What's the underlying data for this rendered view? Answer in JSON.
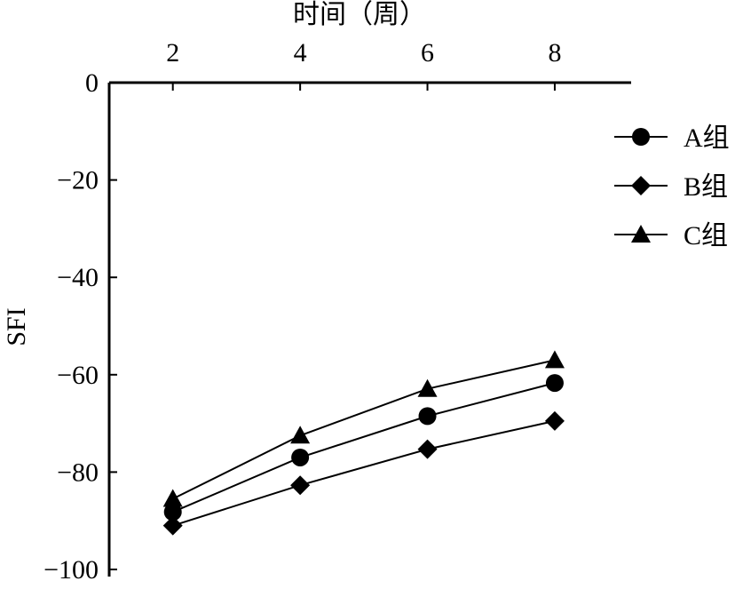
{
  "chart_data": {
    "type": "line",
    "title": "",
    "xlabel": "时间（周）",
    "ylabel": "SFI",
    "x": [
      2,
      4,
      6,
      8
    ],
    "xticks": [
      "2",
      "4",
      "6",
      "8"
    ],
    "xlim": [
      1,
      9.2
    ],
    "ylim": [
      -100,
      0
    ],
    "yticks": [
      0,
      -20,
      -40,
      -60,
      -80,
      -100
    ],
    "ytick_labels": [
      "0",
      "−20",
      "−40",
      "−60",
      "−80",
      "−100"
    ],
    "x_axis_position": "top",
    "grid": false,
    "legend_position": "right",
    "series": [
      {
        "name": "A组",
        "marker": "circle",
        "values": [
          -88.2,
          -77.0,
          -68.5,
          -61.7
        ]
      },
      {
        "name": "B组",
        "marker": "diamond",
        "values": [
          -91.0,
          -82.7,
          -75.3,
          -69.5
        ]
      },
      {
        "name": "C组",
        "marker": "triangle",
        "values": [
          -85.5,
          -72.5,
          -62.9,
          -57.0
        ]
      }
    ]
  }
}
